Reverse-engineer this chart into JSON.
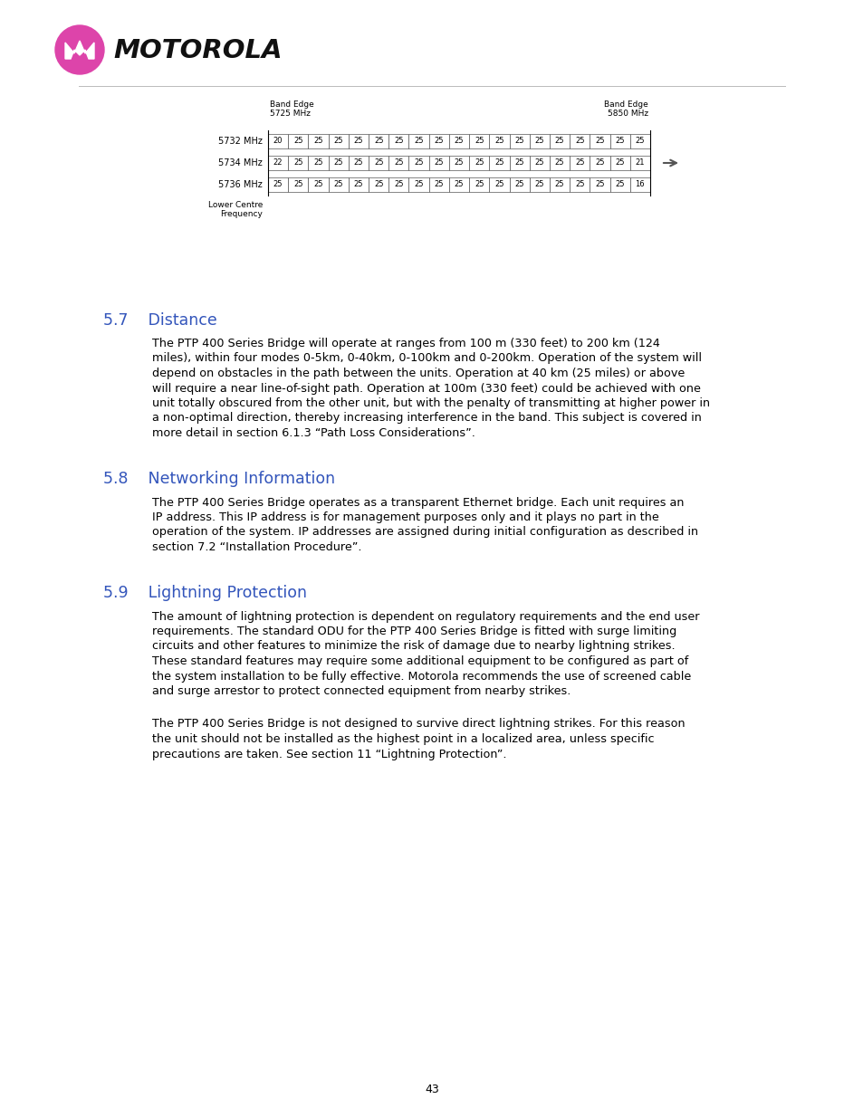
{
  "page_background": "#ffffff",
  "logo_color": "#dd44aa",
  "logo_text": "MOTOROLA",
  "band_edge_left_label": "Band Edge\n5725 MHz",
  "band_edge_right_label": "Band Edge\n5850 MHz",
  "rows": [
    {
      "label": "5732 MHz",
      "values": [
        20,
        25,
        25,
        25,
        25,
        25,
        25,
        25,
        25,
        25,
        25,
        25,
        25,
        25,
        25,
        25,
        25,
        25,
        25
      ],
      "arrow": false
    },
    {
      "label": "5734 MHz",
      "values": [
        22,
        25,
        25,
        25,
        25,
        25,
        25,
        25,
        25,
        25,
        25,
        25,
        25,
        25,
        25,
        25,
        25,
        25,
        21
      ],
      "arrow": true
    },
    {
      "label": "5736 MHz",
      "values": [
        25,
        25,
        25,
        25,
        25,
        25,
        25,
        25,
        25,
        25,
        25,
        25,
        25,
        25,
        25,
        25,
        25,
        25,
        16
      ],
      "arrow": false
    }
  ],
  "lower_centre_label": "Lower Centre\nFrequency",
  "section_57_title": "5.7    Distance",
  "section_57_color": "#3355bb",
  "section_57_body": [
    "The PTP 400 Series Bridge will operate at ranges from 100 m (330 feet) to 200 km (124",
    "miles), within four modes 0-5km, 0-40km, 0-100km and 0-200km. Operation of the system will",
    "depend on obstacles in the path between the units. Operation at 40 km (25 miles) or above",
    "will require a near line-of-sight path. Operation at 100m (330 feet) could be achieved with one",
    "unit totally obscured from the other unit, but with the penalty of transmitting at higher power in",
    "a non-optimal direction, thereby increasing interference in the band. This subject is covered in",
    "more detail in section 6.1.3 “Path Loss Considerations”."
  ],
  "section_58_title": "5.8    Networking Information",
  "section_58_color": "#3355bb",
  "section_58_body": [
    "The PTP 400 Series Bridge operates as a transparent Ethernet bridge. Each unit requires an",
    "IP address. This IP address is for management purposes only and it plays no part in the",
    "operation of the system. IP addresses are assigned during initial configuration as described in",
    "section 7.2 “Installation Procedure”."
  ],
  "section_59_title": "5.9    Lightning Protection",
  "section_59_color": "#3355bb",
  "section_59_body1": [
    "The amount of lightning protection is dependent on regulatory requirements and the end user",
    "requirements. The standard ODU for the PTP 400 Series Bridge is fitted with surge limiting",
    "circuits and other features to minimize the risk of damage due to nearby lightning strikes.",
    "These standard features may require some additional equipment to be configured as part of",
    "the system installation to be fully effective. Motorola recommends the use of screened cable",
    "and surge arrestor to protect connected equipment from nearby strikes."
  ],
  "section_59_body2": [
    "The PTP 400 Series Bridge is not designed to survive direct lightning strikes. For this reason",
    "the unit should not be installed as the highest point in a localized area, unless specific",
    "precautions are taken. See section 11 “Lightning Protection”."
  ],
  "page_number": "43",
  "cell_font_size": 6.0,
  "label_font_size": 7.0,
  "body_font_size": 9.2,
  "section_font_size": 12.5,
  "band_label_font_size": 6.5
}
